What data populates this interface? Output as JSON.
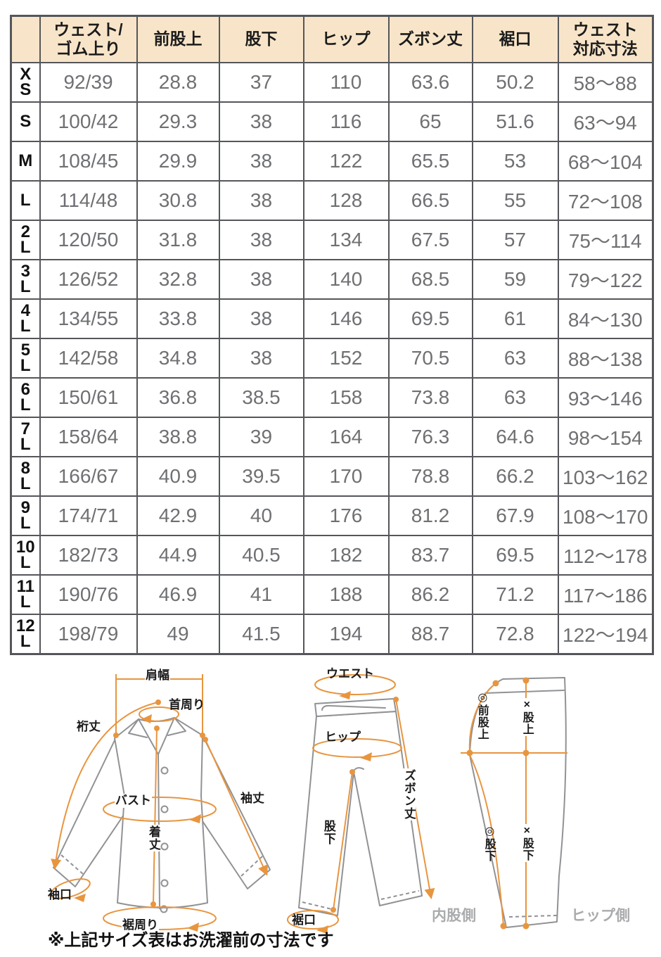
{
  "table": {
    "headers": [
      "",
      "ウェスト/\nゴム上り",
      "前股上",
      "股下",
      "ヒップ",
      "ズボン丈",
      "裾口",
      "ウェスト\n対応寸法"
    ],
    "rows": [
      [
        "X\nS",
        "92/39",
        "28.8",
        "37",
        "110",
        "63.6",
        "50.2",
        "58〜88"
      ],
      [
        "S",
        "100/42",
        "29.3",
        "38",
        "116",
        "65",
        "51.6",
        "63〜94"
      ],
      [
        "M",
        "108/45",
        "29.9",
        "38",
        "122",
        "65.5",
        "53",
        "68〜104"
      ],
      [
        "L",
        "114/48",
        "30.8",
        "38",
        "128",
        "66.5",
        "55",
        "72〜108"
      ],
      [
        "2\nL",
        "120/50",
        "31.8",
        "38",
        "134",
        "67.5",
        "57",
        "75〜114"
      ],
      [
        "3\nL",
        "126/52",
        "32.8",
        "38",
        "140",
        "68.5",
        "59",
        "79〜122"
      ],
      [
        "4\nL",
        "134/55",
        "33.8",
        "38",
        "146",
        "69.5",
        "61",
        "84〜130"
      ],
      [
        "5\nL",
        "142/58",
        "34.8",
        "38",
        "152",
        "70.5",
        "63",
        "88〜138"
      ],
      [
        "6\nL",
        "150/61",
        "36.8",
        "38.5",
        "158",
        "73.8",
        "63",
        "93〜146"
      ],
      [
        "7\nL",
        "158/64",
        "38.8",
        "39",
        "164",
        "76.3",
        "64.6",
        "98〜154"
      ],
      [
        "8\nL",
        "166/67",
        "40.9",
        "39.5",
        "170",
        "78.8",
        "66.2",
        "103〜162"
      ],
      [
        "9\nL",
        "174/71",
        "42.9",
        "40",
        "176",
        "81.2",
        "67.9",
        "108〜170"
      ],
      [
        "10\nL",
        "182/73",
        "44.9",
        "40.5",
        "182",
        "83.7",
        "69.5",
        "112〜178"
      ],
      [
        "11\nL",
        "190/76",
        "46.9",
        "41",
        "188",
        "86.2",
        "71.2",
        "117〜186"
      ],
      [
        "12\nL",
        "198/79",
        "49",
        "41.5",
        "194",
        "88.7",
        "72.8",
        "122〜194"
      ]
    ]
  },
  "diagram": {
    "shirt_labels": {
      "shoulder_width": "肩幅",
      "neck": "首周り",
      "yuki_length": "裄丈",
      "bust": "バスト",
      "sleeve_length": "袖丈",
      "body_length": "着丈",
      "cuff": "袖口",
      "hem_around": "裾周り"
    },
    "pants_front_labels": {
      "waist": "ウエスト",
      "hip": "ヒップ",
      "pants_length": "ズボン丈",
      "inseam": "股下",
      "hem": "裾口"
    },
    "pants_side_labels": {
      "front_rise": "◎前股上",
      "rise": "×股上",
      "inseam_a": "◎股下",
      "inseam_b": "×股下",
      "inner_side": "内股側",
      "hip_side": "ヒップ側"
    }
  },
  "note": "※上記サイズ表はお洗濯前の寸法です",
  "colors": {
    "accent": "#e8953f",
    "header_bg": "#f8e5c9",
    "border": "#55565a",
    "value_text": "#6f7073",
    "outline": "#909295",
    "muted_label": "#aaabad"
  }
}
